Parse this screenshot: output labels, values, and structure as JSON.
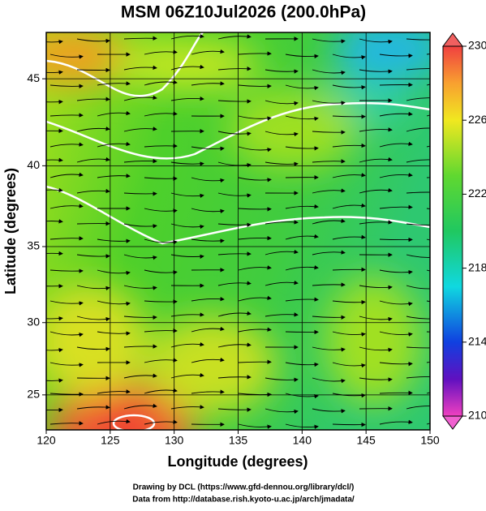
{
  "chart_data": {
    "type": "map",
    "title": "MSM 06Z10Jul2026 (200.0hPa)",
    "xlabel": "Longitude (degrees)",
    "ylabel": "Latitude  (degrees)",
    "xlim": [
      120,
      150
    ],
    "xticks": [
      120,
      125,
      130,
      135,
      140,
      145,
      150
    ],
    "ylim": [
      22.5,
      47.5
    ],
    "yticks": [
      25,
      30,
      35,
      40,
      45
    ],
    "y_scale": "mercator",
    "grid": true,
    "colorbar": {
      "lim": [
        210,
        230
      ],
      "ticks": [
        210,
        214,
        218,
        222,
        226,
        230
      ]
    },
    "credits": [
      "Drawing by DCL (https://www.gfd-dennou.org/library/dcl/)",
      "Data from http://database.rish.kyoto-u.ac.jp/arch/jmadata/"
    ]
  }
}
